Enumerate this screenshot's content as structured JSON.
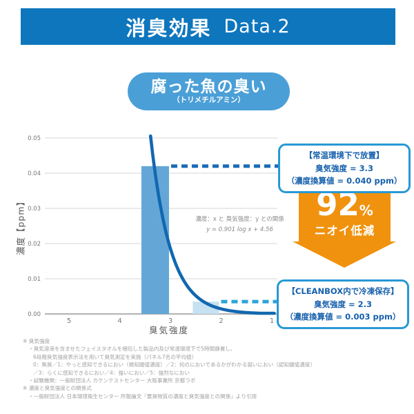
{
  "header": {
    "title_jp": "消臭効果",
    "title_en": "Data.2"
  },
  "subject": {
    "label": "腐った魚の臭い",
    "sub_label": "（トリメチルアミン）"
  },
  "chart_data": {
    "type": "bar",
    "title": "",
    "xlabel": "臭気強度",
    "ylabel": "濃度【ppm】",
    "x_ticks": [
      "5",
      "4",
      "3",
      "2",
      "1"
    ],
    "x_axis_reversed": true,
    "xlim": [
      5.45,
      0.9
    ],
    "y_ticks": [
      "0.05",
      "0.04",
      "0.03",
      "0.02",
      "0.01",
      "0.00"
    ],
    "ylim": [
      0,
      0.05
    ],
    "grid": true,
    "bars": [
      {
        "x": 3.3,
        "value_ppm": 0.04,
        "bar_top_ppm": 0.042,
        "fill": "#64a7d7",
        "condition": "常温環境下で放置"
      },
      {
        "x": 2.3,
        "value_ppm": 0.003,
        "bar_top_ppm": 0.0035,
        "fill": "#c6e1f2",
        "condition": "CLEANBOX内で冷凍保存"
      }
    ],
    "curve": {
      "relation_label": "濃度：x と 臭気強度：y との関係",
      "formula": "y = 0.901 log x + 4.56",
      "a": 0.901,
      "b": 4.56,
      "color": "#1268b0"
    },
    "dash_colors": [
      "#1b6ab6",
      "#2ba4d9"
    ]
  },
  "annotations": {
    "before": {
      "title": "【常温環境下で放置】",
      "line2": "臭気強度 = 3.3",
      "line3": "（濃度換算値 = 0.040 ppm）"
    },
    "after": {
      "title": "【CLEANBOX内で冷凍保存】",
      "line2": "臭気強度 = 2.3",
      "line3": "（濃度換算値 = 0.003 ppm）"
    },
    "reduction": {
      "value": "92",
      "unit": "%",
      "label": "ニオイ低減"
    }
  },
  "footnotes": [
    {
      "indent": 0,
      "text": "※ 臭気強度"
    },
    {
      "indent": 1,
      "text": "・臭気溶液を含ませたフェイスタオルを梱包した製品内及び常温環境下で5時間静置し、"
    },
    {
      "indent": 2,
      "text": "6段階臭気強度表示法を用いて臭気測定を実施（パネル7名の平均値）"
    },
    {
      "indent": 2,
      "text": "0：無臭／1：やっと感知できるにおい（検知閾値濃度）／2：何のにおいであるかがわかる弱いにおい（認知閾値濃度）"
    },
    {
      "indent": 2,
      "text": "／3：らくに感知できるにおい／4：強いにおい／5：強烈なにおい"
    },
    {
      "indent": 1,
      "text": "・試験機関：一般財団法人 カケンテストセンター 大阪事業所 京都ラボ"
    },
    {
      "indent": 0,
      "text": "※ 濃度と臭気強度との関係式"
    },
    {
      "indent": 1,
      "text": "・一般財団法人 日本環境衛生センター 所報論文『悪臭物質の濃度と臭気強度との関係』より引用"
    }
  ],
  "colors": {
    "header_bg": "#0e76bd",
    "pill_bg": "#4b9fd7",
    "box_border": "#2898d4",
    "box_text": "#1660ac",
    "arrow_orange": "#f0920e",
    "grid_line": "#d4d4d4",
    "axis_line": "#999999",
    "tick_text": "#777777",
    "curve_blue": "#1268b0",
    "bar_dark": "#64a7d7",
    "bar_light": "#c6e1f2",
    "dash_dark": "#1b6ab6",
    "dash_light": "#2ba4d9",
    "note_text": "#a0a0a0"
  }
}
